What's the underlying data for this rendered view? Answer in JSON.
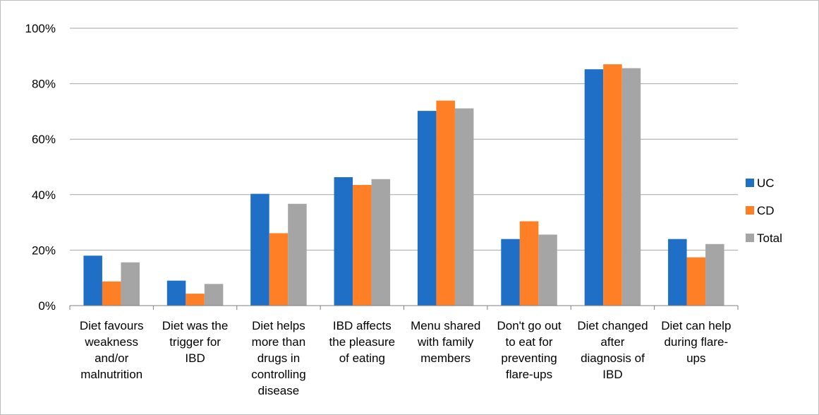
{
  "chart_data": {
    "type": "bar",
    "title": "",
    "xlabel": "",
    "ylabel": "",
    "ylim": [
      0,
      100
    ],
    "y_ticks": [
      "0%",
      "20%",
      "40%",
      "60%",
      "80%",
      "100%"
    ],
    "grid": true,
    "legend_position": "right",
    "categories": [
      [
        "Diet favours",
        "weakness",
        "and/or",
        "malnutrition"
      ],
      [
        "Diet was the",
        "trigger for",
        "IBD"
      ],
      [
        "Diet helps",
        "more than",
        "drugs in",
        "controlling",
        "disease"
      ],
      [
        "IBD affects",
        "the pleasure",
        "of eating"
      ],
      [
        "Menu shared",
        "with family",
        "members"
      ],
      [
        "Don't go out",
        "to eat for",
        "preventing",
        "flare-ups"
      ],
      [
        "Diet changed",
        "after",
        "diagnosis of",
        "IBD"
      ],
      [
        "Diet can help",
        "during flare-",
        "ups"
      ]
    ],
    "series": [
      {
        "name": "UC",
        "color": "#1f6fc6",
        "values": [
          18,
          9,
          40.3,
          46.3,
          70.2,
          24,
          85.2,
          24
        ]
      },
      {
        "name": "CD",
        "color": "#ff7f27",
        "values": [
          8.7,
          4.3,
          26.1,
          43.5,
          73.9,
          30.4,
          87,
          17.4
        ]
      },
      {
        "name": "Total",
        "color": "#a5a5a5",
        "values": [
          15.6,
          7.8,
          36.7,
          45.6,
          71.1,
          25.6,
          85.6,
          22.2
        ]
      }
    ]
  }
}
